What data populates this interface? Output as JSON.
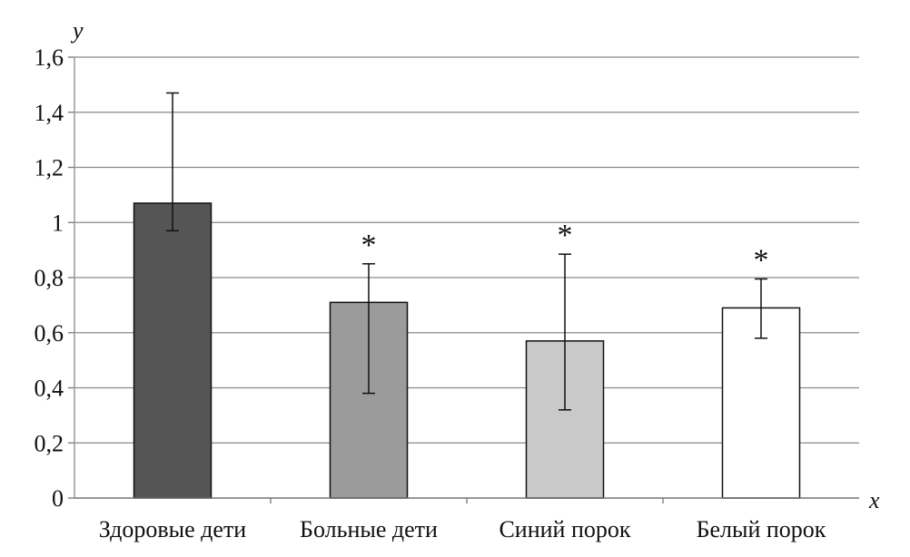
{
  "chart_data": {
    "type": "bar",
    "title": "",
    "xlabel": "x",
    "ylabel": "y",
    "ylim": [
      0,
      1.6
    ],
    "yticks": [
      0,
      0.2,
      0.4,
      0.6,
      0.8,
      1,
      1.2,
      1.4,
      1.6
    ],
    "ytick_labels": [
      "0",
      "0,2",
      "0,4",
      "0,6",
      "0,8",
      "1",
      "1,2",
      "1,4",
      "1,6"
    ],
    "grid": true,
    "categories": [
      "Здоровые дети",
      "Больные дети",
      "Синий порок",
      "Белый порок"
    ],
    "values": [
      1.07,
      0.71,
      0.57,
      0.69
    ],
    "error_upper": [
      1.47,
      0.85,
      0.885,
      0.795
    ],
    "error_lower": [
      0.97,
      0.38,
      0.32,
      0.58
    ],
    "annotations": [
      "",
      "*",
      "*",
      "*"
    ],
    "colors": [
      "#555555",
      "#9b9b9b",
      "#c9c9c9",
      "#ffffff"
    ]
  }
}
